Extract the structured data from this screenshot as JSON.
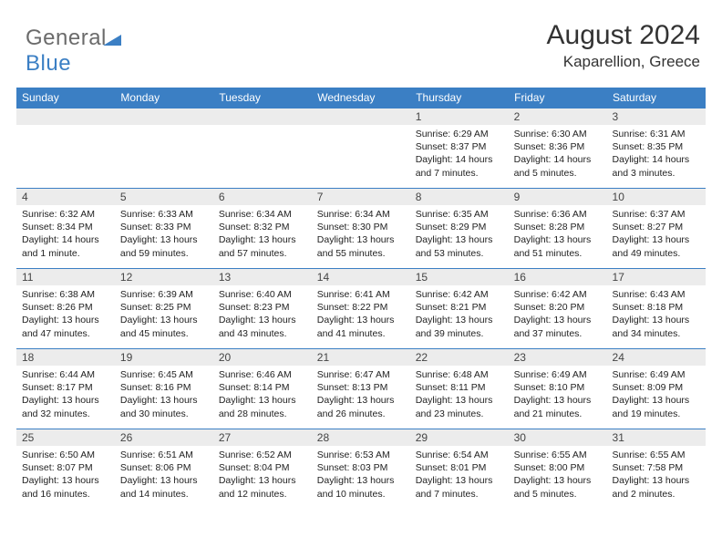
{
  "brand": {
    "part1": "General",
    "part2": "Blue"
  },
  "title": "August 2024",
  "location": "Kaparellion, Greece",
  "colors": {
    "header_bg": "#3b7fc4",
    "header_text": "#ffffff",
    "daynum_bg": "#ececec",
    "text": "#222222",
    "border": "#3b7fc4",
    "logo_gray": "#6b6b6b",
    "logo_blue": "#3b7fc4"
  },
  "days_of_week": [
    "Sunday",
    "Monday",
    "Tuesday",
    "Wednesday",
    "Thursday",
    "Friday",
    "Saturday"
  ],
  "weeks": [
    [
      null,
      null,
      null,
      null,
      {
        "n": "1",
        "sr": "6:29 AM",
        "ss": "8:37 PM",
        "dl": "14 hours and 7 minutes."
      },
      {
        "n": "2",
        "sr": "6:30 AM",
        "ss": "8:36 PM",
        "dl": "14 hours and 5 minutes."
      },
      {
        "n": "3",
        "sr": "6:31 AM",
        "ss": "8:35 PM",
        "dl": "14 hours and 3 minutes."
      }
    ],
    [
      {
        "n": "4",
        "sr": "6:32 AM",
        "ss": "8:34 PM",
        "dl": "14 hours and 1 minute."
      },
      {
        "n": "5",
        "sr": "6:33 AM",
        "ss": "8:33 PM",
        "dl": "13 hours and 59 minutes."
      },
      {
        "n": "6",
        "sr": "6:34 AM",
        "ss": "8:32 PM",
        "dl": "13 hours and 57 minutes."
      },
      {
        "n": "7",
        "sr": "6:34 AM",
        "ss": "8:30 PM",
        "dl": "13 hours and 55 minutes."
      },
      {
        "n": "8",
        "sr": "6:35 AM",
        "ss": "8:29 PM",
        "dl": "13 hours and 53 minutes."
      },
      {
        "n": "9",
        "sr": "6:36 AM",
        "ss": "8:28 PM",
        "dl": "13 hours and 51 minutes."
      },
      {
        "n": "10",
        "sr": "6:37 AM",
        "ss": "8:27 PM",
        "dl": "13 hours and 49 minutes."
      }
    ],
    [
      {
        "n": "11",
        "sr": "6:38 AM",
        "ss": "8:26 PM",
        "dl": "13 hours and 47 minutes."
      },
      {
        "n": "12",
        "sr": "6:39 AM",
        "ss": "8:25 PM",
        "dl": "13 hours and 45 minutes."
      },
      {
        "n": "13",
        "sr": "6:40 AM",
        "ss": "8:23 PM",
        "dl": "13 hours and 43 minutes."
      },
      {
        "n": "14",
        "sr": "6:41 AM",
        "ss": "8:22 PM",
        "dl": "13 hours and 41 minutes."
      },
      {
        "n": "15",
        "sr": "6:42 AM",
        "ss": "8:21 PM",
        "dl": "13 hours and 39 minutes."
      },
      {
        "n": "16",
        "sr": "6:42 AM",
        "ss": "8:20 PM",
        "dl": "13 hours and 37 minutes."
      },
      {
        "n": "17",
        "sr": "6:43 AM",
        "ss": "8:18 PM",
        "dl": "13 hours and 34 minutes."
      }
    ],
    [
      {
        "n": "18",
        "sr": "6:44 AM",
        "ss": "8:17 PM",
        "dl": "13 hours and 32 minutes."
      },
      {
        "n": "19",
        "sr": "6:45 AM",
        "ss": "8:16 PM",
        "dl": "13 hours and 30 minutes."
      },
      {
        "n": "20",
        "sr": "6:46 AM",
        "ss": "8:14 PM",
        "dl": "13 hours and 28 minutes."
      },
      {
        "n": "21",
        "sr": "6:47 AM",
        "ss": "8:13 PM",
        "dl": "13 hours and 26 minutes."
      },
      {
        "n": "22",
        "sr": "6:48 AM",
        "ss": "8:11 PM",
        "dl": "13 hours and 23 minutes."
      },
      {
        "n": "23",
        "sr": "6:49 AM",
        "ss": "8:10 PM",
        "dl": "13 hours and 21 minutes."
      },
      {
        "n": "24",
        "sr": "6:49 AM",
        "ss": "8:09 PM",
        "dl": "13 hours and 19 minutes."
      }
    ],
    [
      {
        "n": "25",
        "sr": "6:50 AM",
        "ss": "8:07 PM",
        "dl": "13 hours and 16 minutes."
      },
      {
        "n": "26",
        "sr": "6:51 AM",
        "ss": "8:06 PM",
        "dl": "13 hours and 14 minutes."
      },
      {
        "n": "27",
        "sr": "6:52 AM",
        "ss": "8:04 PM",
        "dl": "13 hours and 12 minutes."
      },
      {
        "n": "28",
        "sr": "6:53 AM",
        "ss": "8:03 PM",
        "dl": "13 hours and 10 minutes."
      },
      {
        "n": "29",
        "sr": "6:54 AM",
        "ss": "8:01 PM",
        "dl": "13 hours and 7 minutes."
      },
      {
        "n": "30",
        "sr": "6:55 AM",
        "ss": "8:00 PM",
        "dl": "13 hours and 5 minutes."
      },
      {
        "n": "31",
        "sr": "6:55 AM",
        "ss": "7:58 PM",
        "dl": "13 hours and 2 minutes."
      }
    ]
  ],
  "labels": {
    "sunrise": "Sunrise: ",
    "sunset": "Sunset: ",
    "daylight": "Daylight: "
  }
}
